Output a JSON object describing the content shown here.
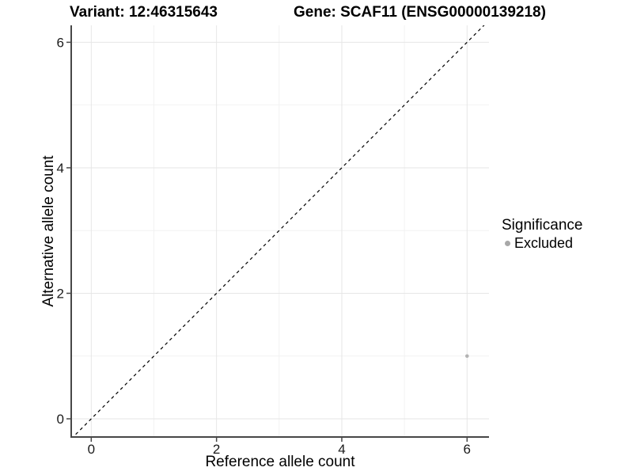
{
  "chart_data": {
    "type": "scatter",
    "title_left": "Variant: 12:46315643",
    "title_right": "Gene: SCAF11 (ENSG00000139218)",
    "xlabel": "Reference allele count",
    "ylabel": "Alternative allele count",
    "xlim": [
      -0.32,
      6.35
    ],
    "ylim": [
      -0.29,
      6.27
    ],
    "x_major_ticks": [
      0,
      2,
      4,
      6
    ],
    "y_major_ticks": [
      0,
      2,
      4,
      6
    ],
    "x_minor_ticks": [
      1,
      3,
      5
    ],
    "y_minor_ticks": [
      1,
      3,
      5
    ],
    "grid": "major and minor gridlines on",
    "reference_line": {
      "type": "identity y=x",
      "slope": 1,
      "intercept": 0,
      "style": "dashed",
      "color": "#000000"
    },
    "series": [
      {
        "name": "Excluded",
        "color": "#b3b3b3",
        "points": [
          {
            "x": 6,
            "y": 1
          }
        ],
        "point_radius": 2.3
      }
    ],
    "legend": {
      "position": "right",
      "title": "Significance",
      "items": [
        {
          "label": "Excluded",
          "color": "#a8a8a8"
        }
      ]
    }
  },
  "colors": {
    "background": "#ffffff",
    "axis_line": "#474747",
    "tick_mark": "#474747",
    "major_grid": "#e6e6e6",
    "minor_grid": "#f2f2f2",
    "tick_label": "#1a1a1a",
    "title_text": "#000000"
  }
}
